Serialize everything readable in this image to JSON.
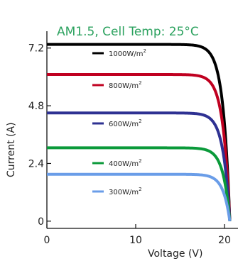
{
  "chart_data": {
    "type": "line",
    "title": "AM1.5, Cell Temp: 25°C",
    "xlabel": "Voltage (V)",
    "ylabel": "Current (A)",
    "xlim": [
      0,
      22
    ],
    "ylim": [
      -0.3,
      7.9
    ],
    "xticks": [
      "0",
      "10",
      "20"
    ],
    "xtick_values": [
      0,
      10,
      20
    ],
    "yticks": [
      "0",
      "2.4",
      "4.8",
      "7.2"
    ],
    "ytick_values": [
      0,
      2.4,
      4.8,
      7.2
    ],
    "voc": 20.6,
    "legend_position": "left-inside",
    "series": [
      {
        "name": "1000W/m",
        "sup": "2",
        "isc": 7.35,
        "color": "#000000"
      },
      {
        "name": "800W/m",
        "sup": "2",
        "isc": 6.1,
        "color": "#c00020"
      },
      {
        "name": "600W/m",
        "sup": "2",
        "isc": 4.5,
        "color": "#2e3192"
      },
      {
        "name": "400W/m",
        "sup": "2",
        "isc": 3.05,
        "color": "#0a9a3a"
      },
      {
        "name": "300W/m",
        "sup": "2",
        "isc": 1.95,
        "color": "#6a9de8"
      }
    ]
  }
}
